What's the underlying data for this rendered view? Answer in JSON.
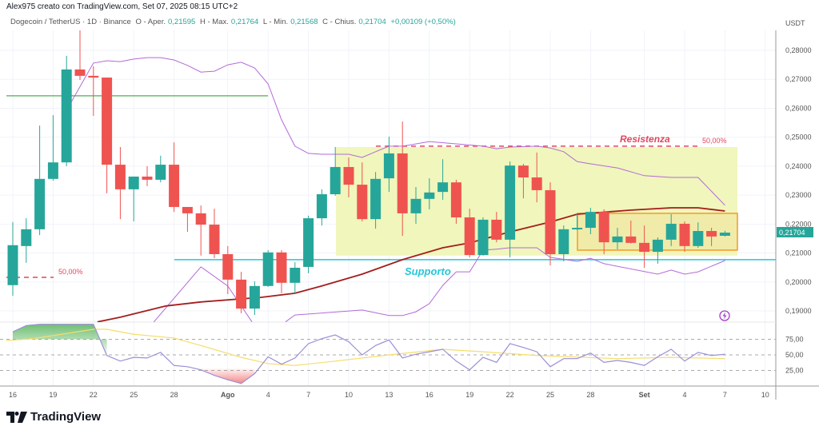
{
  "header": {
    "attribution": "Alex975 creato con TradingView.com, Set 07, 2025 08:15 UTC+2",
    "symbol": "Dogecoin / TetherUS · 1D · Binance",
    "open_label": "O - Aper.",
    "open": "0,21595",
    "high_label": "H - Max.",
    "high": "0,21764",
    "low_label": "L - Min.",
    "low": "0,21568",
    "close_label": "C - Chius.",
    "close": "0,21704",
    "change": "+0,00109 (+0,50%)"
  },
  "footer": {
    "brand": "TradingView"
  },
  "colors": {
    "up": "#26a69a",
    "down": "#ef5350",
    "band": "#b36ad8",
    "ma": "#a31d1d",
    "support": "#26c6da",
    "resistance": "#e0475e",
    "zone": "#eef5b5",
    "box": "#f59a23",
    "rsi": "#9c8fd6",
    "rsi_ma": "#f5dd6b"
  },
  "chart_data": {
    "type": "candlestick",
    "symbol": "DOGE/USDT",
    "currency": "USDT",
    "start_date": "Jul 16",
    "last_price_label": "0,21704",
    "price_ticks": [
      "0,28000",
      "0,27000",
      "0,26000",
      "0,25000",
      "0,24000",
      "0,23000",
      "0,22000",
      "0,21000",
      "0,20000",
      "0,19000"
    ],
    "price_tick_values": [
      0.28,
      0.27,
      0.26,
      0.25,
      0.24,
      0.23,
      0.22,
      0.21,
      0.2,
      0.19
    ],
    "x_ticks": [
      {
        "day": 0,
        "label": "16"
      },
      {
        "day": 3,
        "label": "19"
      },
      {
        "day": 6,
        "label": "22"
      },
      {
        "day": 9,
        "label": "25"
      },
      {
        "day": 12,
        "label": "28"
      },
      {
        "day": 16,
        "label": "Ago"
      },
      {
        "day": 19,
        "label": "4"
      },
      {
        "day": 22,
        "label": "7"
      },
      {
        "day": 25,
        "label": "10"
      },
      {
        "day": 28,
        "label": "13"
      },
      {
        "day": 31,
        "label": "16"
      },
      {
        "day": 34,
        "label": "19"
      },
      {
        "day": 37,
        "label": "22"
      },
      {
        "day": 40,
        "label": "25"
      },
      {
        "day": 43,
        "label": "28"
      },
      {
        "day": 47,
        "label": "Set"
      },
      {
        "day": 50,
        "label": "4"
      },
      {
        "day": 53,
        "label": "7"
      },
      {
        "day": 56,
        "label": "10"
      }
    ],
    "ohlc": [
      [
        0.1989,
        0.2207,
        0.1952,
        0.2127
      ],
      [
        0.2124,
        0.222,
        0.2066,
        0.2182
      ],
      [
        0.2182,
        0.254,
        0.2162,
        0.2356
      ],
      [
        0.2356,
        0.2576,
        0.235,
        0.2413
      ],
      [
        0.2413,
        0.2781,
        0.24,
        0.2734
      ],
      [
        0.2734,
        0.2872,
        0.2698,
        0.2712
      ],
      [
        0.2712,
        0.2745,
        0.2574,
        0.2706
      ],
      [
        0.2706,
        0.2706,
        0.2306,
        0.2405
      ],
      [
        0.2405,
        0.2466,
        0.2217,
        0.232
      ],
      [
        0.232,
        0.2364,
        0.2209,
        0.2364
      ],
      [
        0.2364,
        0.24,
        0.2331,
        0.2353
      ],
      [
        0.2353,
        0.2436,
        0.2344,
        0.2405
      ],
      [
        0.2405,
        0.2482,
        0.2242,
        0.2259
      ],
      [
        0.2259,
        0.2259,
        0.2173,
        0.2237
      ],
      [
        0.2237,
        0.2264,
        0.2091,
        0.2198
      ],
      [
        0.2198,
        0.2253,
        0.2082,
        0.2096
      ],
      [
        0.2096,
        0.2124,
        0.1958,
        0.2008
      ],
      [
        0.2008,
        0.2035,
        0.1892,
        0.1908
      ],
      [
        0.1908,
        0.2002,
        0.1886,
        0.1986
      ],
      [
        0.1986,
        0.211,
        0.1983,
        0.2102
      ],
      [
        0.2102,
        0.211,
        0.1961,
        0.1997
      ],
      [
        0.1997,
        0.2068,
        0.1961,
        0.2049
      ],
      [
        0.2052,
        0.2229,
        0.203,
        0.222
      ],
      [
        0.222,
        0.232,
        0.2195,
        0.2303
      ],
      [
        0.2303,
        0.2466,
        0.2298,
        0.2397
      ],
      [
        0.2397,
        0.243,
        0.2292,
        0.2336
      ],
      [
        0.2336,
        0.2413,
        0.2209,
        0.2217
      ],
      [
        0.2217,
        0.238,
        0.2184,
        0.2356
      ],
      [
        0.2358,
        0.2502,
        0.2311,
        0.2444
      ],
      [
        0.2444,
        0.2554,
        0.2159,
        0.2237
      ],
      [
        0.2237,
        0.2328,
        0.2201,
        0.2287
      ],
      [
        0.2287,
        0.2358,
        0.2251,
        0.2309
      ],
      [
        0.2311,
        0.2424,
        0.2284,
        0.2344
      ],
      [
        0.2344,
        0.2353,
        0.2201,
        0.2223
      ],
      [
        0.2223,
        0.2253,
        0.2085,
        0.2093
      ],
      [
        0.2093,
        0.2223,
        0.2091,
        0.2215
      ],
      [
        0.2215,
        0.2242,
        0.2137,
        0.2146
      ],
      [
        0.2146,
        0.2416,
        0.2085,
        0.2402
      ],
      [
        0.2402,
        0.2408,
        0.2289,
        0.2361
      ],
      [
        0.2361,
        0.2447,
        0.2275,
        0.2317
      ],
      [
        0.2317,
        0.2344,
        0.2057,
        0.2096
      ],
      [
        0.2096,
        0.2195,
        0.2071,
        0.2182
      ],
      [
        0.2182,
        0.2237,
        0.218,
        0.2187
      ],
      [
        0.2187,
        0.2256,
        0.2165,
        0.2242
      ],
      [
        0.2242,
        0.2251,
        0.2096,
        0.2137
      ],
      [
        0.2137,
        0.2187,
        0.2113,
        0.2157
      ],
      [
        0.2157,
        0.2212,
        0.2133,
        0.2135
      ],
      [
        0.2135,
        0.2195,
        0.2049,
        0.2104
      ],
      [
        0.2104,
        0.2154,
        0.2063,
        0.2146
      ],
      [
        0.2146,
        0.2234,
        0.2124,
        0.2201
      ],
      [
        0.2201,
        0.2209,
        0.2104,
        0.2124
      ],
      [
        0.2124,
        0.2206,
        0.2118,
        0.2176
      ],
      [
        0.2176,
        0.2187,
        0.2124,
        0.2157
      ],
      [
        0.21595,
        0.21764,
        0.21568,
        0.21704
      ]
    ],
    "bollinger_upper": [
      [
        4,
        0.2593
      ],
      [
        6,
        0.2756
      ],
      [
        7,
        0.2764
      ],
      [
        8,
        0.2761
      ],
      [
        9,
        0.277
      ],
      [
        10,
        0.2775
      ],
      [
        11,
        0.2775
      ],
      [
        12,
        0.2767
      ],
      [
        13,
        0.2748
      ],
      [
        14,
        0.2725
      ],
      [
        15,
        0.2728
      ],
      [
        16,
        0.275
      ],
      [
        17,
        0.2759
      ],
      [
        18,
        0.2739
      ],
      [
        19,
        0.2684
      ],
      [
        20,
        0.256
      ],
      [
        21,
        0.2469
      ],
      [
        22,
        0.2444
      ],
      [
        23,
        0.2441
      ],
      [
        25,
        0.2441
      ],
      [
        26,
        0.243
      ],
      [
        27,
        0.245
      ],
      [
        28,
        0.2469
      ],
      [
        29,
        0.2469
      ],
      [
        31,
        0.2485
      ],
      [
        33,
        0.2477
      ],
      [
        35,
        0.2469
      ],
      [
        36,
        0.246
      ],
      [
        37,
        0.2466
      ],
      [
        39,
        0.2469
      ],
      [
        40,
        0.2463
      ],
      [
        41,
        0.245
      ],
      [
        42,
        0.2416
      ],
      [
        43,
        0.2408
      ],
      [
        45,
        0.2394
      ],
      [
        47,
        0.2367
      ],
      [
        49,
        0.2361
      ],
      [
        51,
        0.2361
      ],
      [
        53,
        0.2265
      ]
    ],
    "bollinger_lower": [
      [
        10.5,
        0.1862
      ],
      [
        14,
        0.2052
      ],
      [
        16,
        0.1986
      ],
      [
        17.8,
        0.1862
      ]
    ],
    "bollinger_lower_2": [
      [
        20.3,
        0.1862
      ],
      [
        21,
        0.1886
      ],
      [
        26,
        0.1903
      ],
      [
        28,
        0.1884
      ],
      [
        29,
        0.1884
      ],
      [
        30,
        0.1897
      ],
      [
        31,
        0.1925
      ],
      [
        32,
        0.1988
      ],
      [
        33,
        0.2035
      ],
      [
        34,
        0.2035
      ],
      [
        35,
        0.211
      ],
      [
        36,
        0.2113
      ],
      [
        37,
        0.2118
      ],
      [
        39,
        0.2118
      ],
      [
        40,
        0.2085
      ],
      [
        42,
        0.2071
      ],
      [
        43,
        0.2082
      ],
      [
        44,
        0.2063
      ],
      [
        48,
        0.2027
      ],
      [
        49,
        0.2041
      ],
      [
        50,
        0.2027
      ],
      [
        51,
        0.2035
      ],
      [
        53,
        0.2074
      ]
    ],
    "moving_average": [
      [
        6.3,
        0.1862
      ],
      [
        8,
        0.1878
      ],
      [
        11.4,
        0.1917
      ],
      [
        14,
        0.1931
      ],
      [
        18.5,
        0.1947
      ],
      [
        21,
        0.1961
      ],
      [
        23,
        0.1986
      ],
      [
        26,
        0.2027
      ],
      [
        29,
        0.2077
      ],
      [
        32,
        0.2118
      ],
      [
        34,
        0.2135
      ],
      [
        37,
        0.2173
      ],
      [
        40,
        0.2207
      ],
      [
        42,
        0.2234
      ],
      [
        46,
        0.2248
      ],
      [
        49,
        0.2256
      ],
      [
        51,
        0.2256
      ],
      [
        53,
        0.2245
      ]
    ],
    "annotations": {
      "resistance_label": "Resistenza",
      "resistance_price": 0.2469,
      "resistance_pct": "50,00%",
      "support_label": "Supporto",
      "support_price": 0.2077,
      "green_level": 0.2643,
      "left_level": 0.2016,
      "left_pct": "50,00%",
      "range_zone": [
        0.2091,
        0.2466
      ],
      "consolidation_box": [
        0.211,
        0.2237
      ]
    },
    "oscillator": {
      "ticks": [
        "75,00",
        "50,00",
        "25,00"
      ],
      "tick_values": [
        75,
        50,
        25
      ],
      "values": [
        87,
        97,
        99,
        99,
        99,
        99,
        99,
        49,
        40,
        46,
        45,
        54,
        33,
        31,
        26,
        17,
        10,
        4,
        20,
        47,
        35,
        45,
        68,
        76,
        82,
        71,
        50,
        65,
        74,
        45,
        51,
        55,
        59,
        40,
        26,
        46,
        38,
        68,
        62,
        55,
        31,
        44,
        44,
        53,
        38,
        41,
        38,
        33,
        47,
        59,
        40,
        54,
        49,
        51
      ],
      "ma": [
        [
          -0.5,
          73
        ],
        [
          1.5,
          76
        ],
        [
          6,
          91
        ],
        [
          7,
          91
        ],
        [
          9,
          83
        ],
        [
          12,
          77
        ],
        [
          14,
          65
        ],
        [
          17,
          46
        ],
        [
          19,
          36
        ],
        [
          21,
          33
        ],
        [
          24,
          40
        ],
        [
          28,
          50
        ],
        [
          32,
          59
        ],
        [
          35,
          55
        ],
        [
          39,
          49
        ],
        [
          45,
          44
        ],
        [
          49,
          46
        ],
        [
          53,
          44
        ]
      ]
    }
  }
}
